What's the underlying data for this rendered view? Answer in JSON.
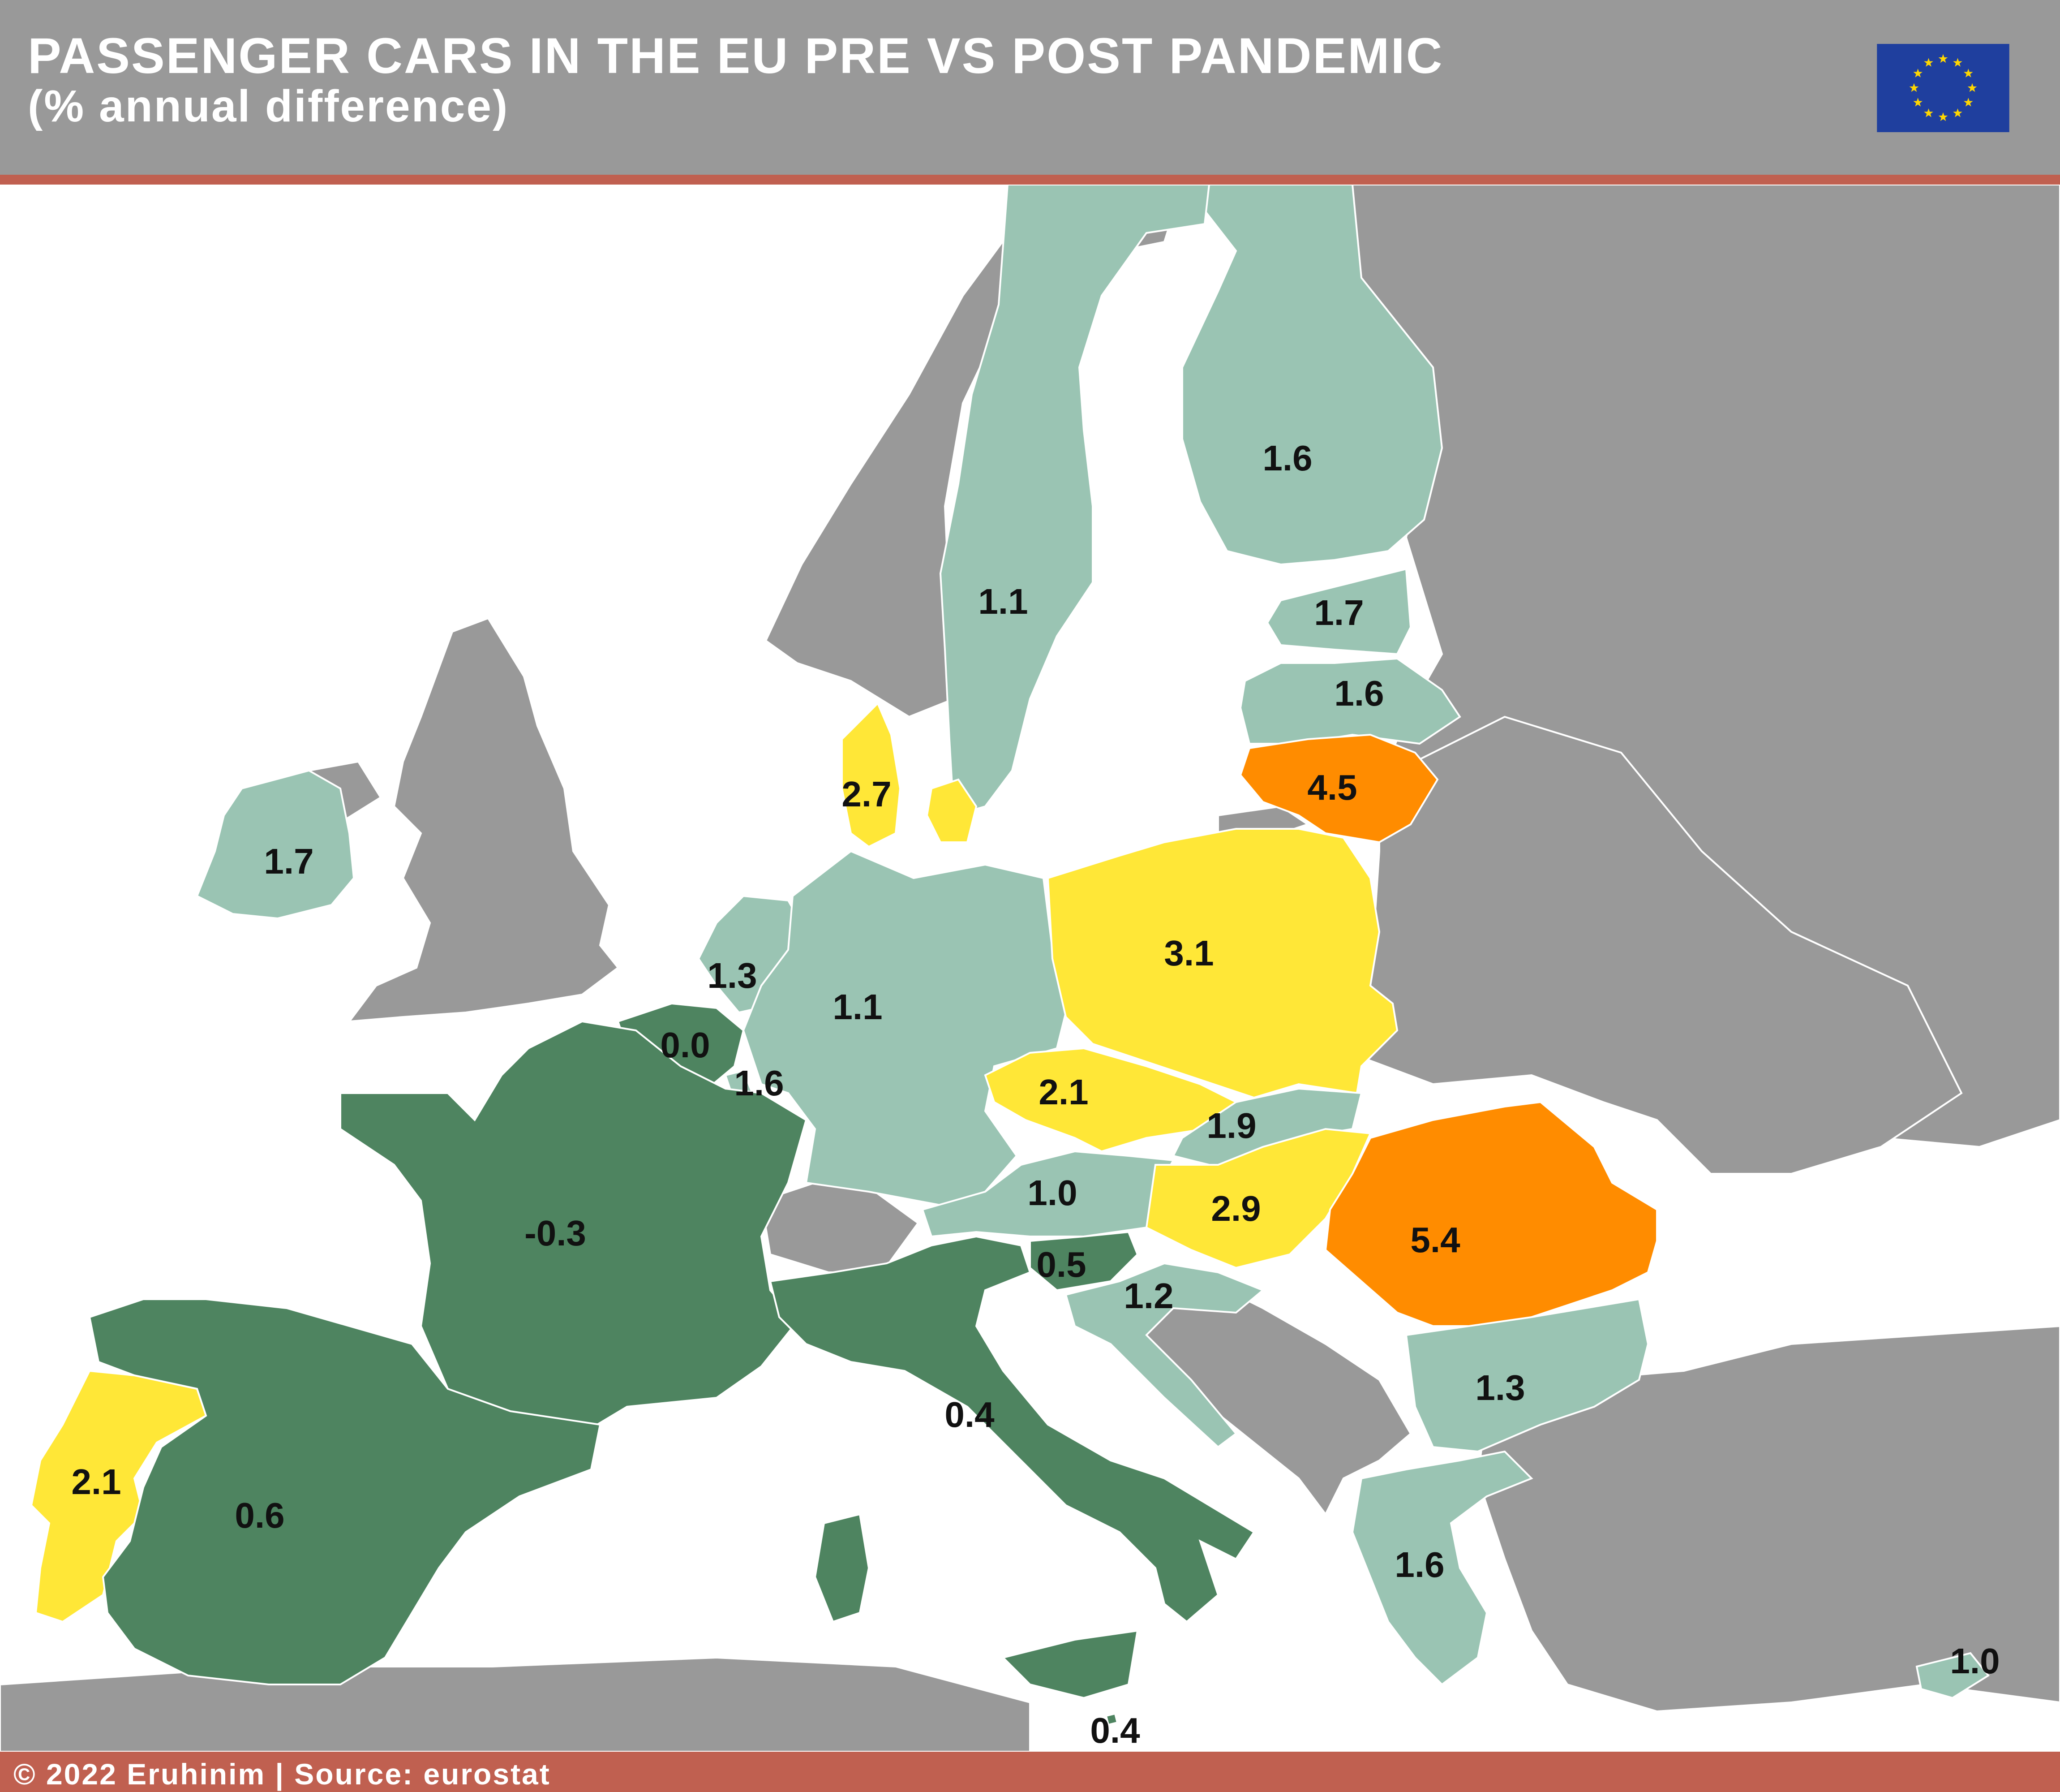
{
  "header": {
    "title": "PASSENGER CARS IN THE EU PRE VS POST PANDEMIC",
    "subtitle": "(% annual difference)"
  },
  "footer": {
    "credit": "© 2022 Eruhinim | Source: eurostat"
  },
  "legend_colors": {
    "below_0.5": "#4e8460",
    "0.5_to_2": "#9ac4b3",
    "2_to_4": "#ffe737",
    "above_4": "#ff8c00",
    "non_eu": "#999999",
    "sea": "#ffffff",
    "accent": "#c06050",
    "flag_blue": "#1f3f9e",
    "flag_star": "#ffd700"
  },
  "chart_data": {
    "type": "choropleth",
    "title": "PASSENGER CARS IN THE EU PRE VS POST PANDEMIC",
    "subtitle": "(% annual difference)",
    "regions": [
      {
        "id": "finland",
        "value": "1.6"
      },
      {
        "id": "sweden",
        "value": "1.1"
      },
      {
        "id": "estonia",
        "value": "1.7"
      },
      {
        "id": "latvia",
        "value": "1.6"
      },
      {
        "id": "lithuania",
        "value": "4.5"
      },
      {
        "id": "denmark",
        "value": "2.7"
      },
      {
        "id": "ireland",
        "value": "1.7"
      },
      {
        "id": "netherlands",
        "value": "1.3"
      },
      {
        "id": "belgium",
        "value": "0.0"
      },
      {
        "id": "luxembourg",
        "value": "1.6"
      },
      {
        "id": "germany",
        "value": "1.1"
      },
      {
        "id": "poland",
        "value": "3.1"
      },
      {
        "id": "czechia",
        "value": "2.1"
      },
      {
        "id": "slovakia",
        "value": "1.9"
      },
      {
        "id": "austria",
        "value": "1.0"
      },
      {
        "id": "hungary",
        "value": "2.9"
      },
      {
        "id": "romania",
        "value": "5.4"
      },
      {
        "id": "france",
        "value": "-0.3"
      },
      {
        "id": "slovenia",
        "value": "0.5"
      },
      {
        "id": "croatia",
        "value": "1.2"
      },
      {
        "id": "bulgaria",
        "value": "1.3"
      },
      {
        "id": "italy",
        "value": "0.4"
      },
      {
        "id": "portugal",
        "value": "2.1"
      },
      {
        "id": "spain",
        "value": "0.6"
      },
      {
        "id": "greece",
        "value": "1.6"
      },
      {
        "id": "cyprus",
        "value": "1.0"
      },
      {
        "id": "malta",
        "value": "0.4"
      }
    ]
  }
}
